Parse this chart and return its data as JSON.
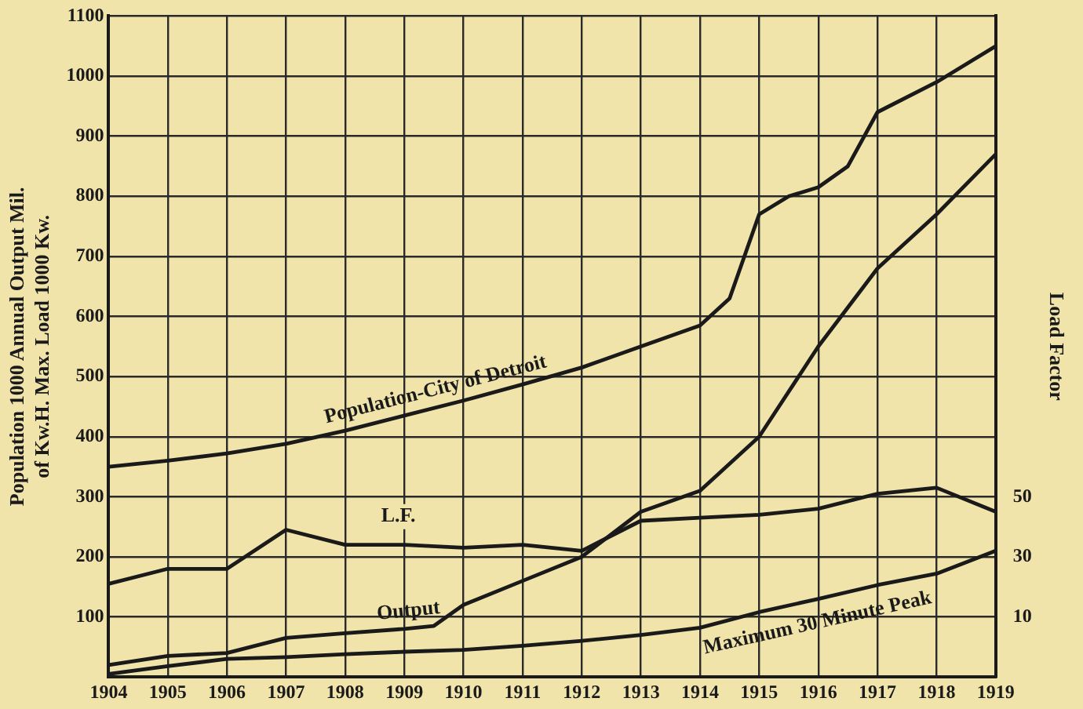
{
  "chart_data": {
    "type": "line",
    "ylabel": "Population 1000 Annual Output Mil.\nof Kw.H. Max. Load 1000 Kw.",
    "y2label": "Load Factor",
    "xlim": [
      1904,
      1919
    ],
    "xticks": [
      1904,
      1905,
      1906,
      1907,
      1908,
      1909,
      1910,
      1911,
      1912,
      1913,
      1914,
      1915,
      1916,
      1917,
      1918,
      1919
    ],
    "ylim": [
      0,
      1100
    ],
    "yticks": [
      100,
      200,
      300,
      400,
      500,
      600,
      700,
      800,
      900,
      1000,
      1100
    ],
    "y2lim": [
      -10,
      210
    ],
    "y2ticks": [
      10,
      30,
      50
    ],
    "grid": true,
    "legend": false,
    "marker": "none",
    "line_style": "solid",
    "series": [
      {
        "name": "Population-City of Detroit",
        "color": "#1a1a1a",
        "x": [
          1904,
          1905,
          1906,
          1907,
          1908,
          1909,
          1910,
          1911,
          1912,
          1913,
          1914,
          1914.5,
          1915,
          1915.5,
          1916,
          1916.5,
          1917,
          1918,
          1919
        ],
        "values": [
          350,
          360,
          372,
          388,
          410,
          435,
          460,
          487,
          515,
          550,
          585,
          630,
          770,
          800,
          815,
          850,
          940,
          990,
          1050
        ]
      },
      {
        "name": "L.F.",
        "color": "#1a1a1a",
        "axis": "y2",
        "x": [
          1904,
          1905,
          1906,
          1907,
          1908,
          1909,
          1910,
          1911,
          1912,
          1913,
          1914,
          1915,
          1916,
          1917,
          1918,
          1919
        ],
        "values": [
          21,
          26,
          26,
          39,
          34,
          34,
          33,
          34,
          32,
          42,
          43,
          44,
          46,
          51,
          53,
          45
        ]
      },
      {
        "name": "Output",
        "color": "#1a1a1a",
        "x": [
          1904,
          1905,
          1906,
          1907,
          1908,
          1909,
          1909.5,
          1910,
          1911,
          1912,
          1913,
          1914,
          1915,
          1916,
          1917,
          1918,
          1919
        ],
        "values": [
          20,
          35,
          40,
          65,
          73,
          80,
          85,
          120,
          160,
          200,
          275,
          310,
          400,
          550,
          680,
          770,
          870
        ]
      },
      {
        "name": "Maximum 30 Minute Peak",
        "color": "#1a1a1a",
        "x": [
          1904,
          1905,
          1906,
          1907,
          1908,
          1909,
          1910,
          1911,
          1912,
          1913,
          1914,
          1915,
          1916,
          1917,
          1918,
          1919
        ],
        "values": [
          5,
          18,
          30,
          33,
          38,
          42,
          45,
          52,
          60,
          70,
          82,
          108,
          130,
          153,
          172,
          210
        ]
      }
    ]
  }
}
